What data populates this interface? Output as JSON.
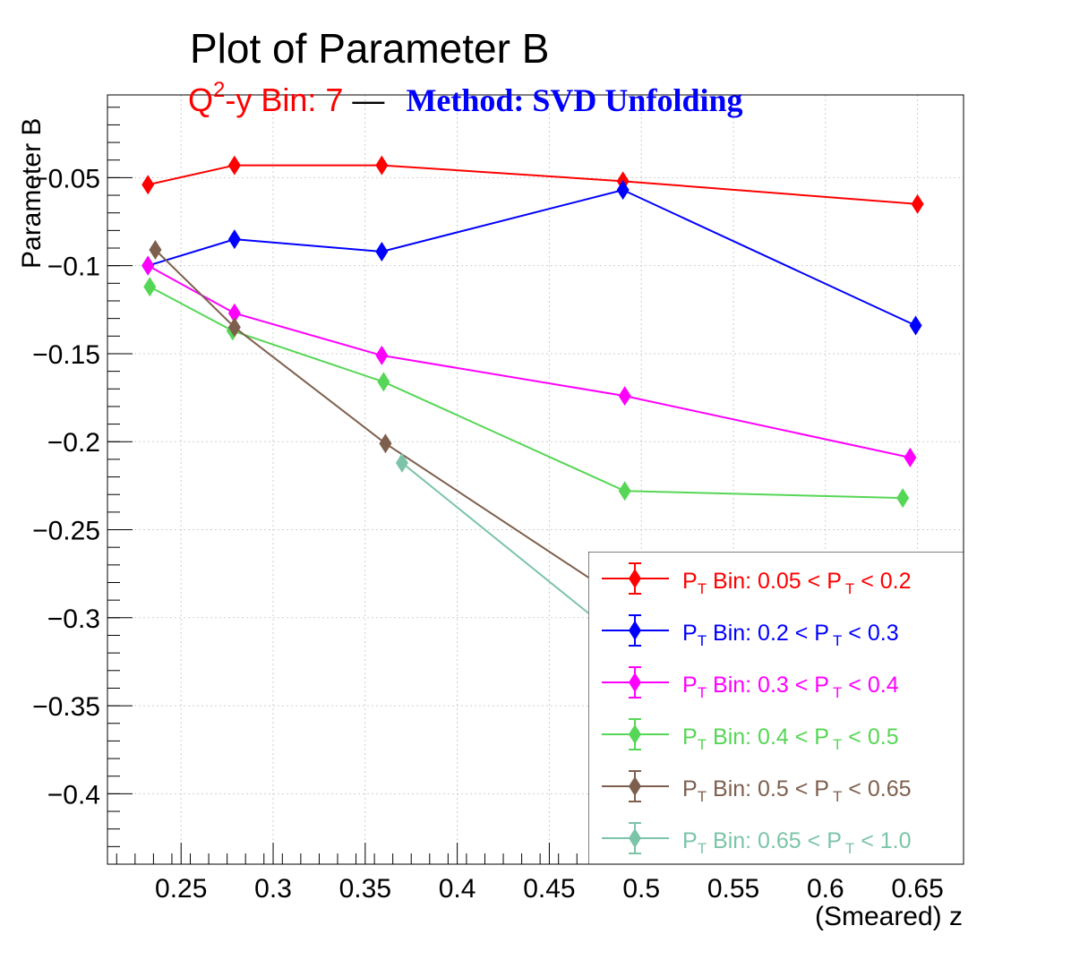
{
  "title": "Plot of Parameter B",
  "subtitle": {
    "q2_prefix": "Q",
    "q2_sup": "2",
    "bin_text": "-y Bin: 7",
    "dash": " — ",
    "method": "Method: SVD Unfolding"
  },
  "colors": {
    "subtitle": "#ff0000",
    "method": "#0000ff",
    "dash": "#000000"
  },
  "chart_data": {
    "type": "line",
    "title": "Plot of Parameter B",
    "xlabel": "(Smeared) z",
    "ylabel": "Parameter B",
    "xlim": [
      0.21,
      0.675
    ],
    "ylim": [
      -0.44,
      -0.003
    ],
    "x_ticks": [
      0.25,
      0.3,
      0.35,
      0.4,
      0.45,
      0.5,
      0.55,
      0.6,
      0.65
    ],
    "x_tick_labels": [
      "0.25",
      "0.3",
      "0.35",
      "0.4",
      "0.45",
      "0.5",
      "0.55",
      "0.6",
      "0.65"
    ],
    "y_ticks": [
      -0.05,
      -0.1,
      -0.15,
      -0.2,
      -0.25,
      -0.3,
      -0.35,
      -0.4
    ],
    "y_tick_labels": [
      "−0.05",
      "−0.1",
      "−0.15",
      "−0.2",
      "−0.25",
      "−0.3",
      "−0.35",
      "−0.4"
    ],
    "grid": true,
    "legend_position": "bottom-right",
    "marker": "diamond",
    "series": [
      {
        "name": "P_T Bin: 0.05 < P_T < 0.2",
        "legend": {
          "p1": "P",
          "s1": "T",
          "mid": " Bin: 0.05 < P",
          "s2": "T",
          "end": " < 0.2"
        },
        "color": "#ff0000",
        "x": [
          0.232,
          0.279,
          0.359,
          0.49,
          0.65
        ],
        "y": [
          -0.054,
          -0.043,
          -0.043,
          -0.052,
          -0.065
        ]
      },
      {
        "name": "P_T Bin: 0.2 < P_T < 0.3",
        "legend": {
          "p1": "P",
          "s1": "T",
          "mid": " Bin: 0.2 < P",
          "s2": "T",
          "end": " < 0.3"
        },
        "color": "#0000ff",
        "x": [
          0.232,
          0.279,
          0.359,
          0.49,
          0.649
        ],
        "y": [
          -0.1,
          -0.085,
          -0.092,
          -0.057,
          -0.134
        ]
      },
      {
        "name": "P_T Bin: 0.3 < P_T < 0.4",
        "legend": {
          "p1": "P",
          "s1": "T",
          "mid": " Bin: 0.3 < P",
          "s2": "T",
          "end": " < 0.4"
        },
        "color": "#ff00ff",
        "x": [
          0.232,
          0.279,
          0.359,
          0.491,
          0.646
        ],
        "y": [
          -0.1,
          -0.127,
          -0.151,
          -0.174,
          -0.209
        ]
      },
      {
        "name": "P_T Bin: 0.4 < P_T < 0.5",
        "legend": {
          "p1": "P",
          "s1": "T",
          "mid": " Bin: 0.4 < P",
          "s2": "T",
          "end": " < 0.5"
        },
        "color": "#56d656",
        "x": [
          0.233,
          0.278,
          0.36,
          0.491,
          0.642
        ],
        "y": [
          -0.112,
          -0.137,
          -0.166,
          -0.228,
          -0.232
        ]
      },
      {
        "name": "P_T Bin: 0.5 < P_T < 0.65",
        "legend": {
          "p1": "P",
          "s1": "T",
          "mid": " Bin: 0.5 < P",
          "s2": "T",
          "end": " < 0.65"
        },
        "color": "#7e5f4d",
        "x": [
          0.236,
          0.279,
          0.361,
          0.6
        ],
        "y": [
          -0.091,
          -0.135,
          -0.201,
          -0.366
        ]
      },
      {
        "name": "P_T Bin: 0.65 < P_T < 1.0",
        "legend": {
          "p1": "P",
          "s1": "T",
          "mid": " Bin: 0.65 < P",
          "s2": "T",
          "end": " < 1.0"
        },
        "color": "#7cc4a8",
        "x": [
          0.37,
          0.6
        ],
        "y": [
          -0.212,
          -0.406
        ]
      }
    ]
  }
}
